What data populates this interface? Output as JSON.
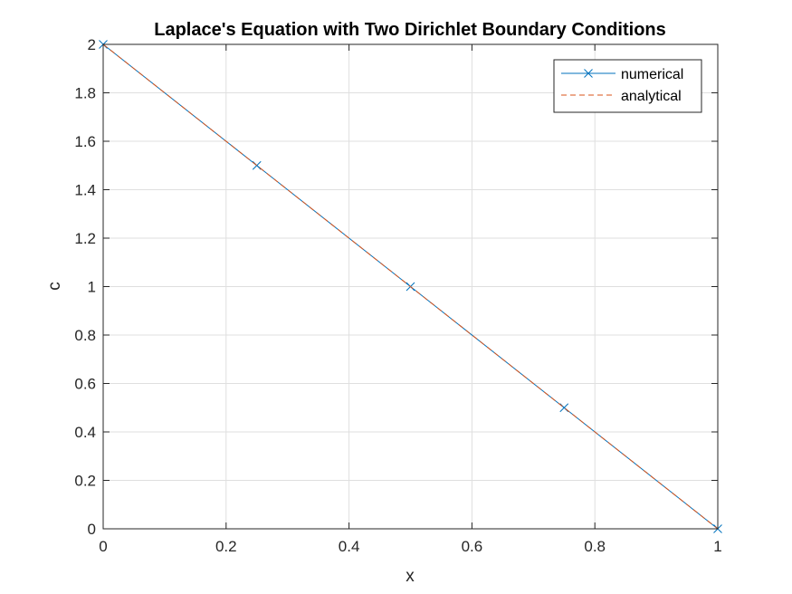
{
  "chart_data": {
    "type": "line",
    "title": "Laplace's Equation with Two Dirichlet Boundary Conditions",
    "xlabel": "x",
    "ylabel": "c",
    "xlim": [
      0,
      1
    ],
    "ylim": [
      0,
      2
    ],
    "x_ticks": [
      0,
      0.2,
      0.4,
      0.6,
      0.8,
      1
    ],
    "x_tick_labels": [
      "0",
      "0.2",
      "0.4",
      "0.6",
      "0.8",
      "1"
    ],
    "y_ticks": [
      0,
      0.2,
      0.4,
      0.6,
      0.8,
      1,
      1.2,
      1.4,
      1.6,
      1.8,
      2
    ],
    "y_tick_labels": [
      "0",
      "0.2",
      "0.4",
      "0.6",
      "0.8",
      "1",
      "1.2",
      "1.4",
      "1.6",
      "1.8",
      "2"
    ],
    "grid": true,
    "legend_position": "top-right",
    "series": [
      {
        "name": "numerical",
        "color": "#0072BD",
        "line_style": "solid",
        "marker": "x",
        "x": [
          0,
          0.25,
          0.5,
          0.75,
          1
        ],
        "y": [
          2,
          1.5,
          1,
          0.5,
          0
        ]
      },
      {
        "name": "analytical",
        "color": "#D95319",
        "line_style": "dashed",
        "marker": "none",
        "x": [
          0,
          1
        ],
        "y": [
          2,
          0
        ]
      }
    ]
  }
}
